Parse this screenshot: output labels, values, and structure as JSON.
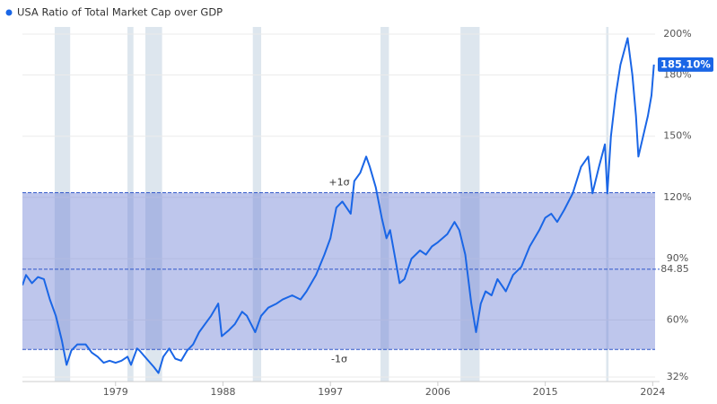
{
  "chart_data": {
    "type": "line",
    "x": [
      1971.2,
      1971.5,
      1972,
      1972.5,
      1973,
      1973.5,
      1974,
      1974.5,
      1974.9,
      1975.3,
      1975.8,
      1976.5,
      1977,
      1977.5,
      1978,
      1978.5,
      1979,
      1979.5,
      1980,
      1980.3,
      1980.8,
      1981,
      1981.6,
      1982.2,
      1982.6,
      1983,
      1983.5,
      1984,
      1984.5,
      1985,
      1985.5,
      1986,
      1986.5,
      1987,
      1987.6,
      1987.9,
      1988.5,
      1989,
      1989.6,
      1990,
      1990.7,
      1991.2,
      1991.8,
      1992.5,
      1993,
      1993.8,
      1994.5,
      1995,
      1995.8,
      1996.5,
      1997,
      1997.5,
      1998,
      1998.7,
      1999,
      1999.5,
      2000,
      2000.3,
      2000.8,
      2001.3,
      2001.7,
      2002,
      2002.5,
      2002.8,
      2003.2,
      2003.8,
      2004.5,
      2005,
      2005.5,
      2006,
      2006.8,
      2007.4,
      2007.8,
      2008.3,
      2008.8,
      2009.2,
      2009.6,
      2010,
      2010.5,
      2011,
      2011.7,
      2012.3,
      2013,
      2013.7,
      2014.5,
      2015,
      2015.5,
      2016,
      2016.6,
      2017.3,
      2018,
      2018.6,
      2018.95,
      2019.5,
      2020.0,
      2020.2,
      2020.5,
      2020.9,
      2021.3,
      2021.9,
      2022.3,
      2022.6,
      2022.8,
      2023.2,
      2023.6,
      2023.9,
      2024.1
    ],
    "series": [
      {
        "name": "USA Ratio of Total Market Cap over GDP",
        "color": "#1a66e6",
        "values": [
          77,
          82,
          78,
          81,
          80,
          70,
          62,
          50,
          38,
          45,
          48,
          48,
          44,
          42,
          39,
          40,
          39,
          40,
          42,
          38,
          46,
          45,
          41,
          37,
          34,
          42,
          46,
          41,
          40,
          45,
          48,
          54,
          58,
          62,
          68,
          52,
          55,
          58,
          64,
          62,
          54,
          62,
          66,
          68,
          70,
          72,
          70,
          74,
          82,
          92,
          100,
          115,
          118,
          112,
          128,
          132,
          140,
          135,
          125,
          110,
          100,
          104,
          88,
          78,
          80,
          90,
          94,
          92,
          96,
          98,
          102,
          108,
          104,
          92,
          68,
          54,
          68,
          74,
          72,
          80,
          74,
          82,
          86,
          96,
          104,
          110,
          112,
          108,
          114,
          122,
          135,
          140,
          122,
          135,
          146,
          122,
          150,
          170,
          185,
          198,
          180,
          160,
          140,
          150,
          160,
          170,
          185.1
        ]
      }
    ],
    "xlim": [
      1971.2,
      2024.2
    ],
    "ylim": [
      32,
      200
    ],
    "xticks": [
      1979,
      1988,
      1997,
      2006,
      2015,
      2024
    ],
    "yticks": [
      {
        "value": 32,
        "label": "32%"
      },
      {
        "value": 60,
        "label": "60%"
      },
      {
        "value": 90,
        "label": "90%"
      },
      {
        "value": 120,
        "label": "120%"
      },
      {
        "value": 150,
        "label": "150%"
      },
      {
        "value": 180,
        "label": "180%"
      },
      {
        "value": 200,
        "label": "200%"
      }
    ],
    "grid": true,
    "recessions": [
      [
        1973.9,
        1975.2
      ],
      [
        1980.0,
        1980.5
      ],
      [
        1981.5,
        1982.9
      ],
      [
        1990.5,
        1991.2
      ],
      [
        2001.2,
        2001.9
      ],
      [
        2007.9,
        2009.5
      ],
      [
        2020.1,
        2020.3
      ]
    ],
    "mean": 84.85,
    "upper": {
      "value": 122.3,
      "label": "+1σ"
    },
    "lower": {
      "value": 45.5,
      "label": "-1σ"
    },
    "end_label": {
      "value": 185.1,
      "label": "185.10%"
    }
  }
}
